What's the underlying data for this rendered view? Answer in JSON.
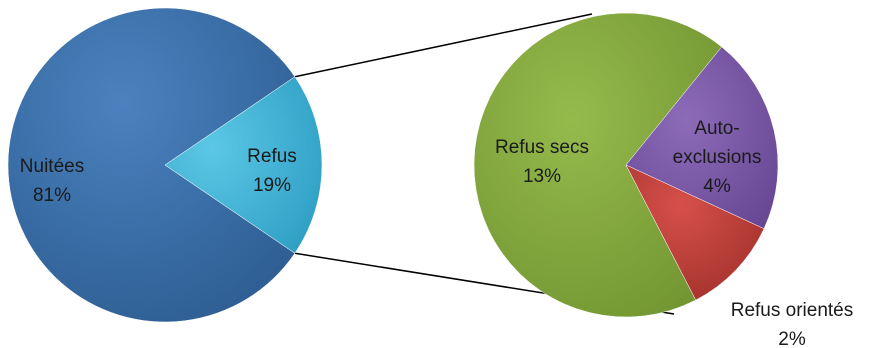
{
  "chart_data": {
    "type": "pie",
    "title": "",
    "main_pie": {
      "slices": [
        {
          "label": "Nuitées",
          "value": 81,
          "value_label": "81%",
          "color": "#3a6ea8"
        },
        {
          "label": "Refus",
          "value": 19,
          "value_label": "19%",
          "color": "#3fb3d6"
        }
      ]
    },
    "secondary_pie": {
      "slices": [
        {
          "label": "Refus secs",
          "value": 13,
          "value_label": "13%",
          "color": "#86ab3f"
        },
        {
          "label": "Auto-exclusions",
          "label_lines": [
            "Auto-",
            "exclusions"
          ],
          "value": 4,
          "value_label": "4%",
          "color": "#7b5aa8"
        },
        {
          "label": "Refus orientés",
          "value": 2,
          "value_label": "2%",
          "color": "#c0403c"
        }
      ]
    },
    "legend": "none"
  }
}
